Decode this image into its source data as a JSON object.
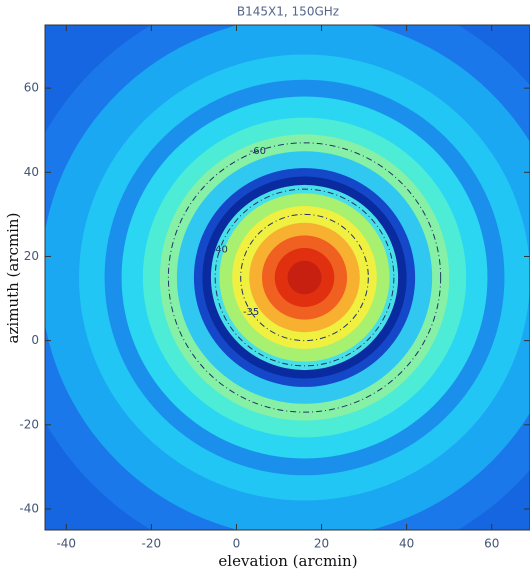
{
  "chart_data": {
    "type": "contour",
    "title": "B145X1, 150GHz",
    "x_label": "elevation (arcmin)",
    "y_label": "azimuth (arcmin)",
    "xlim": [
      -45,
      69
    ],
    "ylim": [
      -45,
      75
    ],
    "xticks": [
      -40,
      -20,
      0,
      20,
      40,
      60
    ],
    "yticks": [
      -40,
      -20,
      0,
      20,
      40,
      60
    ],
    "background_color": "#1566e0",
    "center": [
      16,
      15
    ],
    "rings": [
      {
        "radius": 70,
        "color": "#1a78ea"
      },
      {
        "radius": 62,
        "color": "#1aa8f2"
      },
      {
        "radius": 53,
        "color": "#22c6f4"
      },
      {
        "radius": 47,
        "color": "#1a90ec"
      },
      {
        "radius": 43,
        "color": "#2ad6f2"
      },
      {
        "radius": 38,
        "color": "#4cecd6"
      },
      {
        "radius": 34,
        "color": "#86f0a6"
      },
      {
        "radius": 30,
        "color": "#30c8f0"
      },
      {
        "radius": 26,
        "color": "#1448c8"
      },
      {
        "radius": 24,
        "color": "#0a2aa0"
      },
      {
        "radius": 22,
        "color": "#48e0e8"
      },
      {
        "radius": 20,
        "color": "#a8f070"
      },
      {
        "radius": 17,
        "color": "#f0f040"
      },
      {
        "radius": 13,
        "color": "#f8b030"
      },
      {
        "radius": 10,
        "color": "#f06020"
      },
      {
        "radius": 7,
        "color": "#e03010"
      },
      {
        "radius": 4,
        "color": "#c82010"
      }
    ],
    "contours": [
      {
        "level": -60,
        "radius": 32
      },
      {
        "level": -40,
        "radius": 21
      },
      {
        "level": -35,
        "radius": 15
      }
    ],
    "contour_color": "#223366"
  }
}
